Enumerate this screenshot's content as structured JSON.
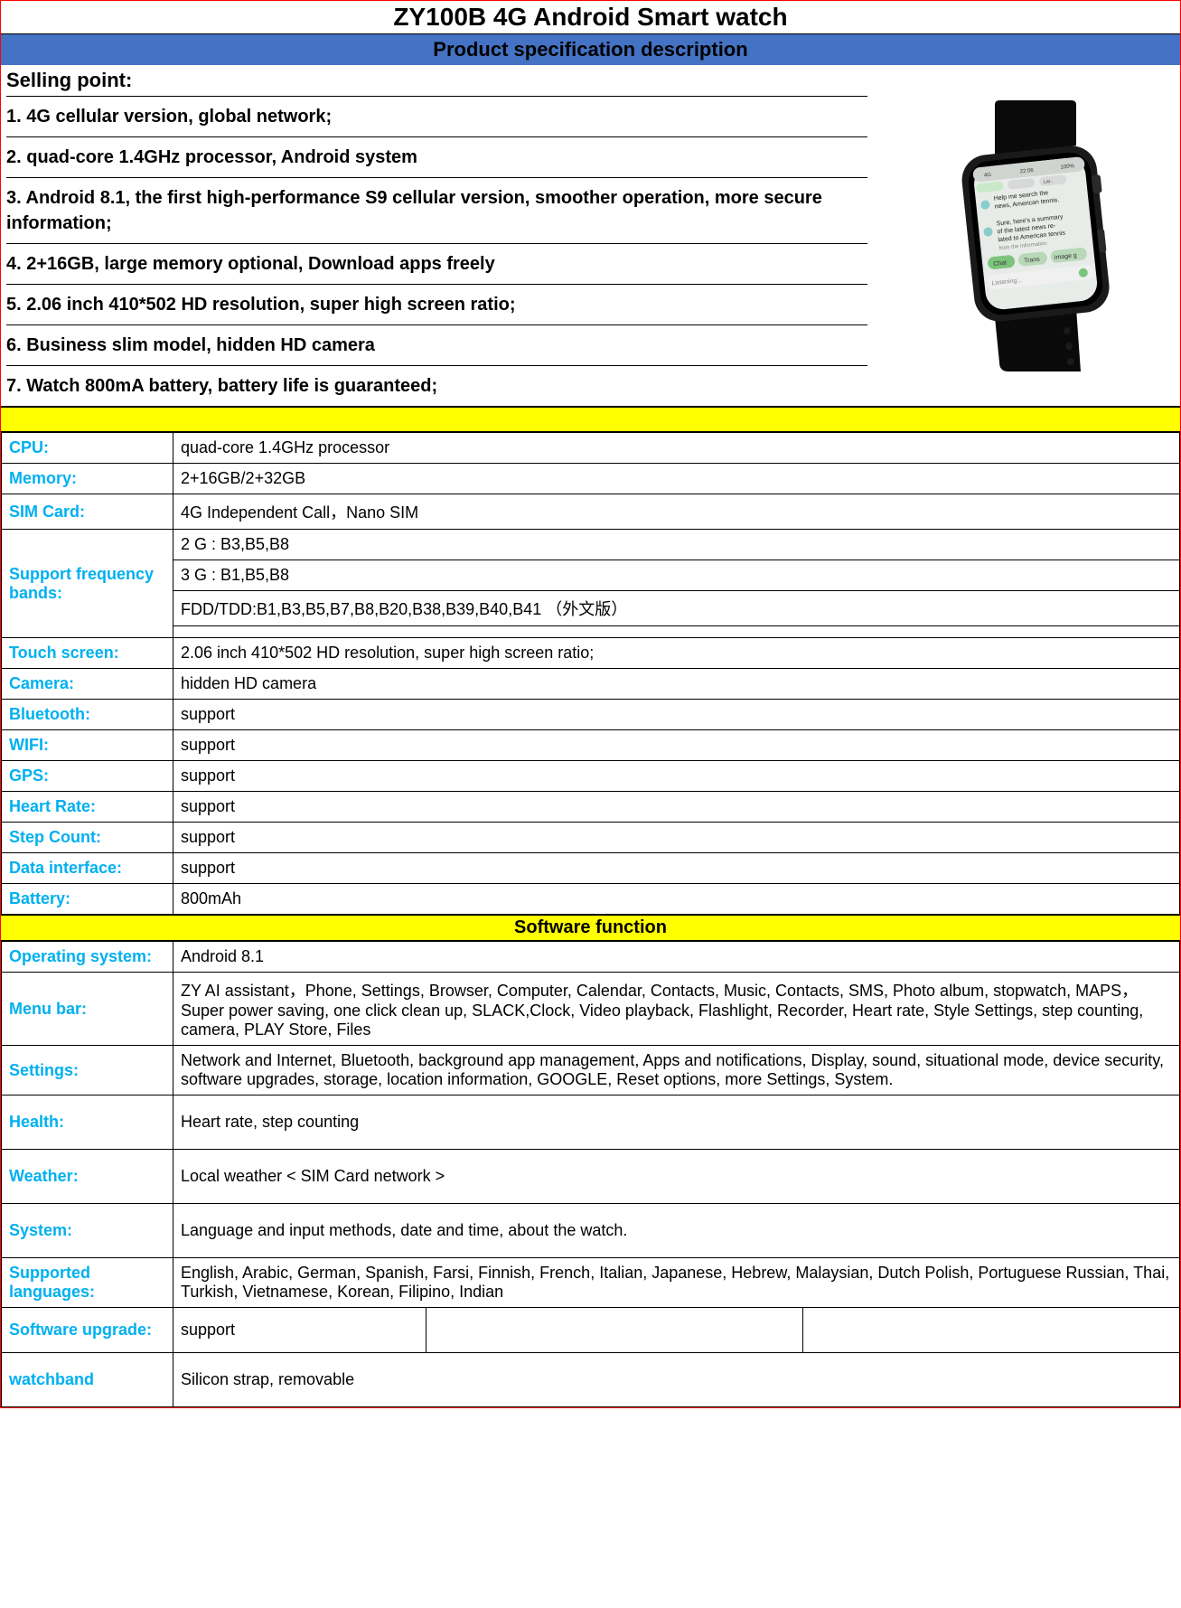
{
  "title": "ZY100B 4G Android  Smart watch",
  "subtitle": "Product specification description",
  "selling_header": "Selling point:",
  "selling_points": [
    "1. 4G cellular version, global network;",
    "2. quad-core 1.4GHz processor, Android  system",
    "3. Android 8.1, the first high-performance S9 cellular version, smoother operation, more secure information;",
    "4. 2+16GB,  large memory optional, Download apps freely",
    "5. 2.06 inch 410*502  HD resolution, super high screen ratio;",
    "6. Business slim model, hidden HD camera",
    "7. Watch 800mA battery, battery life is guaranteed;"
  ],
  "watch_screen": {
    "status_time": "22:06",
    "status_batt": "100%",
    "msg1": "Help me search the news, American tennis.",
    "msg2": "Sure, here's a summary of the latest news related to American tennis from the information",
    "btn1": "Chat",
    "btn2": "Trans",
    "btn3": "image g",
    "listening": "Listening..."
  },
  "hw_specs": [
    {
      "label": "CPU:",
      "value": "quad-core 1.4GHz processor"
    },
    {
      "label": "Memory:",
      "value": "2+16GB/2+32GB"
    },
    {
      "label": "SIM Card:",
      "value": "4G Independent Call，Nano SIM"
    }
  ],
  "freq_label": "Support frequency bands:",
  "freq_rows": [
    "2  G : B3,B5,B8",
    "3  G : B1,B5,B8",
    "FDD/TDD:B1,B3,B5,B7,B8,B20,B38,B39,B40,B41    （外文版）",
    ""
  ],
  "hw_specs2": [
    {
      "label": "Touch screen:",
      "value": " 2.06 inch 410*502  HD resolution, super high screen ratio;"
    },
    {
      "label": "Camera:",
      "value": "hidden HD camera"
    },
    {
      "label": "Bluetooth:",
      "value": "support"
    },
    {
      "label": "WIFI:",
      "value": "support"
    },
    {
      "label": "GPS:",
      "value": "support"
    },
    {
      "label": "Heart Rate:",
      "value": "support"
    },
    {
      "label": "Step Count:",
      "value": "support"
    },
    {
      "label": "Data interface:",
      "value": "support"
    },
    {
      "label": "Battery:",
      "value": " 800mAh"
    }
  ],
  "sw_header": "Software function",
  "sw_specs": [
    {
      "label": "Operating system:",
      "value": "Android 8.1",
      "cls": ""
    },
    {
      "label": "Menu bar:",
      "value": "ZY AI assistant，Phone, Settings, Browser, Computer, Calendar, Contacts, Music, Contacts, SMS, Photo album, stopwatch, MAPS，Super power saving, one click clean up, SLACK,Clock, Video playback, Flashlight, Recorder, Heart rate, Style Settings, step counting, camera, PLAY Store, Files",
      "cls": ""
    },
    {
      "label": "Settings:",
      "value": "Network and Internet, Bluetooth, background app management, Apps and notifications, Display, sound, situational mode, device security, software upgrades, storage, location information, GOOGLE, Reset options, more Settings, System.",
      "cls": ""
    },
    {
      "label": "Health:",
      "value": "Heart rate, step counting",
      "cls": "taller"
    },
    {
      "label": "Weather:",
      "value": "Local weather < SIM Card network >",
      "cls": "taller"
    },
    {
      "label": "System:",
      "value": "Language and input methods, date and time, about the watch.",
      "cls": "taller"
    },
    {
      "label": "Supported languages:",
      "value": "English, Arabic, German, Spanish, Farsi, Finnish, French, Italian, Japanese, Hebrew, Malaysian, Dutch Polish, Portuguese Russian, Thai, Turkish, Vietnamese, Korean, Filipino, Indian",
      "cls": ""
    }
  ],
  "sw_upgrade": {
    "label": "Software upgrade:",
    "value": "support"
  },
  "watchband": {
    "label": "watchband",
    "value": "Silicon strap, removable"
  },
  "colors": {
    "title_bg": "#ffffff",
    "subtitle_bg": "#4472c4",
    "yellow": "#ffff00",
    "label_color": "#00b0f0",
    "border": "#000000",
    "outer_border": "#ff0000"
  }
}
